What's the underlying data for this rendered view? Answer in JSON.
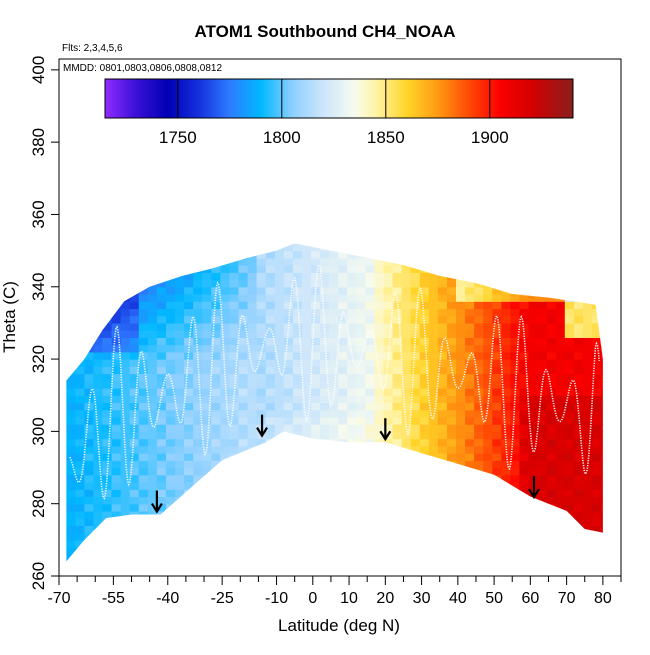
{
  "chart_data": {
    "type": "heatmap",
    "title": "ATOM1 Southbound CH4_NOAA",
    "annotations": {
      "flights": "Flts: 2,3,4,5,6",
      "dates": "MMDD: 0801,0803,0806,0808,0812"
    },
    "xlabel": "Latitude (deg N)",
    "ylabel": "Theta (C)",
    "xlim": [
      -70,
      85
    ],
    "ylim": [
      260,
      403
    ],
    "x_major_ticks": [
      -70,
      -55,
      -40,
      -25,
      -10,
      0,
      10,
      20,
      30,
      40,
      50,
      60,
      70,
      80
    ],
    "x_minor_ticks": [
      -65,
      -60,
      -50,
      -45,
      -35,
      -30,
      -20,
      -15,
      -5,
      5,
      15,
      25,
      35,
      45,
      55,
      65,
      75,
      85
    ],
    "y_ticks": [
      260,
      280,
      300,
      320,
      340,
      360,
      380,
      400
    ],
    "colorbar": {
      "min": 1715,
      "max": 1940,
      "tick_values": [
        1750,
        1800,
        1850,
        1900
      ],
      "tick_labels": [
        "1750",
        "1800",
        "1850",
        "1900"
      ],
      "stops": [
        {
          "v": 1715,
          "c": "#8f2cff"
        },
        {
          "v": 1730,
          "c": "#3a10d8"
        },
        {
          "v": 1745,
          "c": "#0000b4"
        },
        {
          "v": 1760,
          "c": "#1530dc"
        },
        {
          "v": 1775,
          "c": "#2e7cff"
        },
        {
          "v": 1790,
          "c": "#00b8ff"
        },
        {
          "v": 1805,
          "c": "#8ccfff"
        },
        {
          "v": 1820,
          "c": "#cde6fb"
        },
        {
          "v": 1835,
          "c": "#f7fbef"
        },
        {
          "v": 1845,
          "c": "#fff4a8"
        },
        {
          "v": 1860,
          "c": "#ffd52a"
        },
        {
          "v": 1875,
          "c": "#ff9a12"
        },
        {
          "v": 1890,
          "c": "#ff4a05"
        },
        {
          "v": 1905,
          "c": "#fb0000"
        },
        {
          "v": 1920,
          "c": "#d40000"
        },
        {
          "v": 1940,
          "c": "#8a1e1e"
        }
      ]
    },
    "field": {
      "lat_range": [
        -68,
        80
      ],
      "theta_range": [
        264,
        352
      ],
      "lower_boundary": [
        {
          "lat": -68,
          "theta": 264
        },
        {
          "lat": -63,
          "theta": 270
        },
        {
          "lat": -57,
          "theta": 276
        },
        {
          "lat": -50,
          "theta": 277
        },
        {
          "lat": -42,
          "theta": 277
        },
        {
          "lat": -33,
          "theta": 285
        },
        {
          "lat": -25,
          "theta": 292
        },
        {
          "lat": -13,
          "theta": 297
        },
        {
          "lat": -8,
          "theta": 300
        },
        {
          "lat": 0,
          "theta": 298
        },
        {
          "lat": 10,
          "theta": 297
        },
        {
          "lat": 20,
          "theta": 297
        },
        {
          "lat": 30,
          "theta": 294
        },
        {
          "lat": 40,
          "theta": 291
        },
        {
          "lat": 50,
          "theta": 288
        },
        {
          "lat": 60,
          "theta": 282
        },
        {
          "lat": 70,
          "theta": 278
        },
        {
          "lat": 75,
          "theta": 273
        },
        {
          "lat": 80,
          "theta": 272
        }
      ],
      "upper_boundary": [
        {
          "lat": -68,
          "theta": 314
        },
        {
          "lat": -63,
          "theta": 320
        },
        {
          "lat": -58,
          "theta": 328
        },
        {
          "lat": -52,
          "theta": 336
        },
        {
          "lat": -45,
          "theta": 340
        },
        {
          "lat": -36,
          "theta": 343
        },
        {
          "lat": -28,
          "theta": 345
        },
        {
          "lat": -18,
          "theta": 348
        },
        {
          "lat": -10,
          "theta": 350
        },
        {
          "lat": -5,
          "theta": 352
        },
        {
          "lat": 5,
          "theta": 350
        },
        {
          "lat": 15,
          "theta": 348
        },
        {
          "lat": 25,
          "theta": 346
        },
        {
          "lat": 35,
          "theta": 343
        },
        {
          "lat": 45,
          "theta": 341
        },
        {
          "lat": 55,
          "theta": 338
        },
        {
          "lat": 65,
          "theta": 337
        },
        {
          "lat": 72,
          "theta": 336
        },
        {
          "lat": 78,
          "theta": 335
        },
        {
          "lat": 80,
          "theta": 320
        },
        {
          "lat": 80,
          "theta": 305
        }
      ],
      "pattern_description": "CH4 increases from south (~1760-1795 ppb at low theta in the Southern Hemisphere, ~1745 in the high-theta southern wedge) to north (~1890-1920 ppb in the northern mid/high latitudes), with ~1820-1835 ppb near the equator"
    },
    "tropopause_arrows": [
      {
        "lat": -43,
        "theta": 277
      },
      {
        "lat": -14,
        "theta": 298
      },
      {
        "lat": 20,
        "theta": 297
      },
      {
        "lat": 61,
        "theta": 281
      }
    ]
  }
}
